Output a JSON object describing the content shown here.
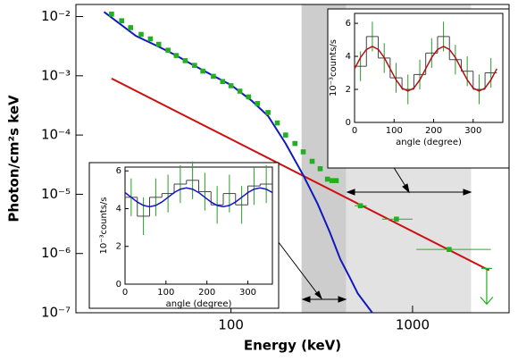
{
  "chart_data": [
    {
      "type": "scatter",
      "xlabel": "Energy (keV)",
      "ylabel": "Photon/cm²s keV",
      "log_x": true,
      "log_y": true,
      "xlim": [
        14,
        3400
      ],
      "ylim": [
        1e-07,
        0.016
      ],
      "xticks": [
        100,
        1000
      ],
      "yticks": [
        {
          "value": 1e-07,
          "label": "10⁻⁷"
        },
        {
          "value": 1e-06,
          "label": "10⁻⁶"
        },
        {
          "value": 1e-05,
          "label": "10⁻⁵"
        },
        {
          "value": 0.0001,
          "label": "10⁻⁴"
        },
        {
          "value": 0.001,
          "label": "10⁻³"
        },
        {
          "value": 0.01,
          "label": "10⁻²"
        }
      ],
      "bands": [
        {
          "range": [
            245,
            2100
          ],
          "color": "#e2e2e2"
        },
        {
          "range": [
            245,
            430
          ],
          "color": "#cdcdcd"
        }
      ],
      "series": [
        {
          "style": "line",
          "color": "#cc1010",
          "x": [
            22,
            2640
          ],
          "values": [
            0.0009,
            5.2e-07
          ]
        },
        {
          "style": "line",
          "color": "#1018c0",
          "x": [
            20,
            30,
            40,
            50,
            60,
            80,
            100,
            130,
            160,
            200,
            250,
            300,
            350,
            400,
            450,
            500,
            600
          ],
          "values": [
            0.012,
            0.0047,
            0.0031,
            0.0022,
            0.0016,
            0.001,
            0.0007,
            0.00038,
            0.00021,
            7.2e-05,
            2.1e-05,
            6.9e-06,
            2.3e-06,
            8e-07,
            4e-07,
            2.1e-07,
            1e-07
          ]
        },
        {
          "style": "points",
          "color": "#22b022",
          "x": [
            22,
            25,
            28,
            32,
            36,
            40,
            45,
            50,
            56,
            63,
            70,
            80,
            90,
            100,
            112,
            125,
            140,
            160,
            180,
            200,
            225,
            250,
            280,
            310,
            340,
            360,
            380
          ],
          "values": [
            0.011,
            0.0085,
            0.0065,
            0.005,
            0.0042,
            0.0034,
            0.0027,
            0.0022,
            0.0018,
            0.0015,
            0.0012,
            0.00098,
            0.0008,
            0.00068,
            0.00055,
            0.00044,
            0.00034,
            0.00024,
            0.00016,
            0.0001,
            7.2e-05,
            5.2e-05,
            3.6e-05,
            2.7e-05,
            1.8e-05,
            1.7e-05,
            1.7e-05
          ]
        },
        {
          "style": "points",
          "color": "#22b022",
          "x": [
            516,
            815,
            1590
          ],
          "values": [
            6.4e-06,
            3.8e-06,
            1.17e-06
          ],
          "xerr": [
            [
              480,
              560
            ],
            [
              680,
              1000
            ],
            [
              1050,
              2700
            ]
          ]
        },
        {
          "style": "upper-limit",
          "color": "#22b022",
          "x": [
            2560
          ],
          "values": [
            5.6e-07
          ]
        }
      ]
    },
    {
      "type": "histogram",
      "xlabel": "angle (degree)",
      "ylabel": "10⁻³counts/s",
      "xlim": [
        0,
        375
      ],
      "ylim": [
        0,
        6.6
      ],
      "xticks": [
        0,
        100,
        200,
        300
      ],
      "yticks": [
        0,
        2,
        4,
        6
      ],
      "bins": [
        0,
        30,
        60,
        90,
        120,
        150,
        180,
        210,
        240,
        270,
        300,
        330,
        360
      ],
      "values": [
        3.4,
        5.2,
        3.9,
        2.7,
        2.0,
        2.9,
        4.2,
        5.2,
        3.8,
        3.1,
        2.0,
        3.0
      ],
      "errors": [
        0.9,
        0.9,
        0.9,
        0.9,
        0.9,
        0.9,
        0.9,
        0.9,
        0.9,
        0.9,
        0.9,
        0.9
      ],
      "color": "#444444",
      "error_color": "#2a9a2a",
      "model": {
        "color": "#b01010",
        "x": [
          0,
          15,
          30,
          45,
          60,
          75,
          90,
          105,
          120,
          135,
          150,
          165,
          180,
          195,
          210,
          225,
          240,
          255,
          270,
          285,
          300,
          315,
          330,
          345,
          360
        ],
        "values": [
          3.25,
          3.93,
          4.42,
          4.6,
          4.42,
          3.93,
          3.25,
          2.58,
          2.08,
          1.9,
          2.08,
          2.58,
          3.25,
          3.93,
          4.42,
          4.6,
          4.42,
          3.93,
          3.25,
          2.58,
          2.08,
          1.9,
          2.08,
          2.58,
          3.25
        ]
      }
    },
    {
      "type": "histogram",
      "xlabel": "angle (degree)",
      "ylabel": "10⁻³counts/s",
      "xlim": [
        0,
        360
      ],
      "ylim": [
        0,
        6.2
      ],
      "xticks": [
        0,
        100,
        200,
        300
      ],
      "yticks": [
        0,
        2,
        4,
        6
      ],
      "bins": [
        0,
        30,
        60,
        90,
        120,
        150,
        180,
        210,
        240,
        270,
        300,
        330,
        360
      ],
      "values": [
        4.6,
        3.6,
        4.6,
        4.8,
        5.3,
        5.5,
        4.9,
        4.2,
        4.8,
        4.2,
        5.2,
        5.3
      ],
      "errors": [
        1.0,
        1.0,
        1.0,
        1.0,
        1.0,
        1.0,
        1.0,
        1.0,
        1.0,
        1.0,
        1.0,
        1.0
      ],
      "color": "#444444",
      "error_color": "#2a9a2a",
      "model": {
        "color": "#1018c0",
        "x": [
          0,
          15,
          30,
          45,
          60,
          75,
          90,
          105,
          120,
          135,
          150,
          165,
          180,
          195,
          210,
          225,
          240,
          255,
          270,
          285,
          300,
          315,
          330,
          345,
          360
        ],
        "values": [
          4.85,
          4.6,
          4.35,
          4.17,
          4.1,
          4.17,
          4.35,
          4.6,
          4.85,
          5.03,
          5.1,
          5.03,
          4.85,
          4.6,
          4.35,
          4.17,
          4.1,
          4.17,
          4.35,
          4.6,
          4.85,
          5.03,
          5.1,
          5.03,
          4.85
        ]
      }
    }
  ]
}
